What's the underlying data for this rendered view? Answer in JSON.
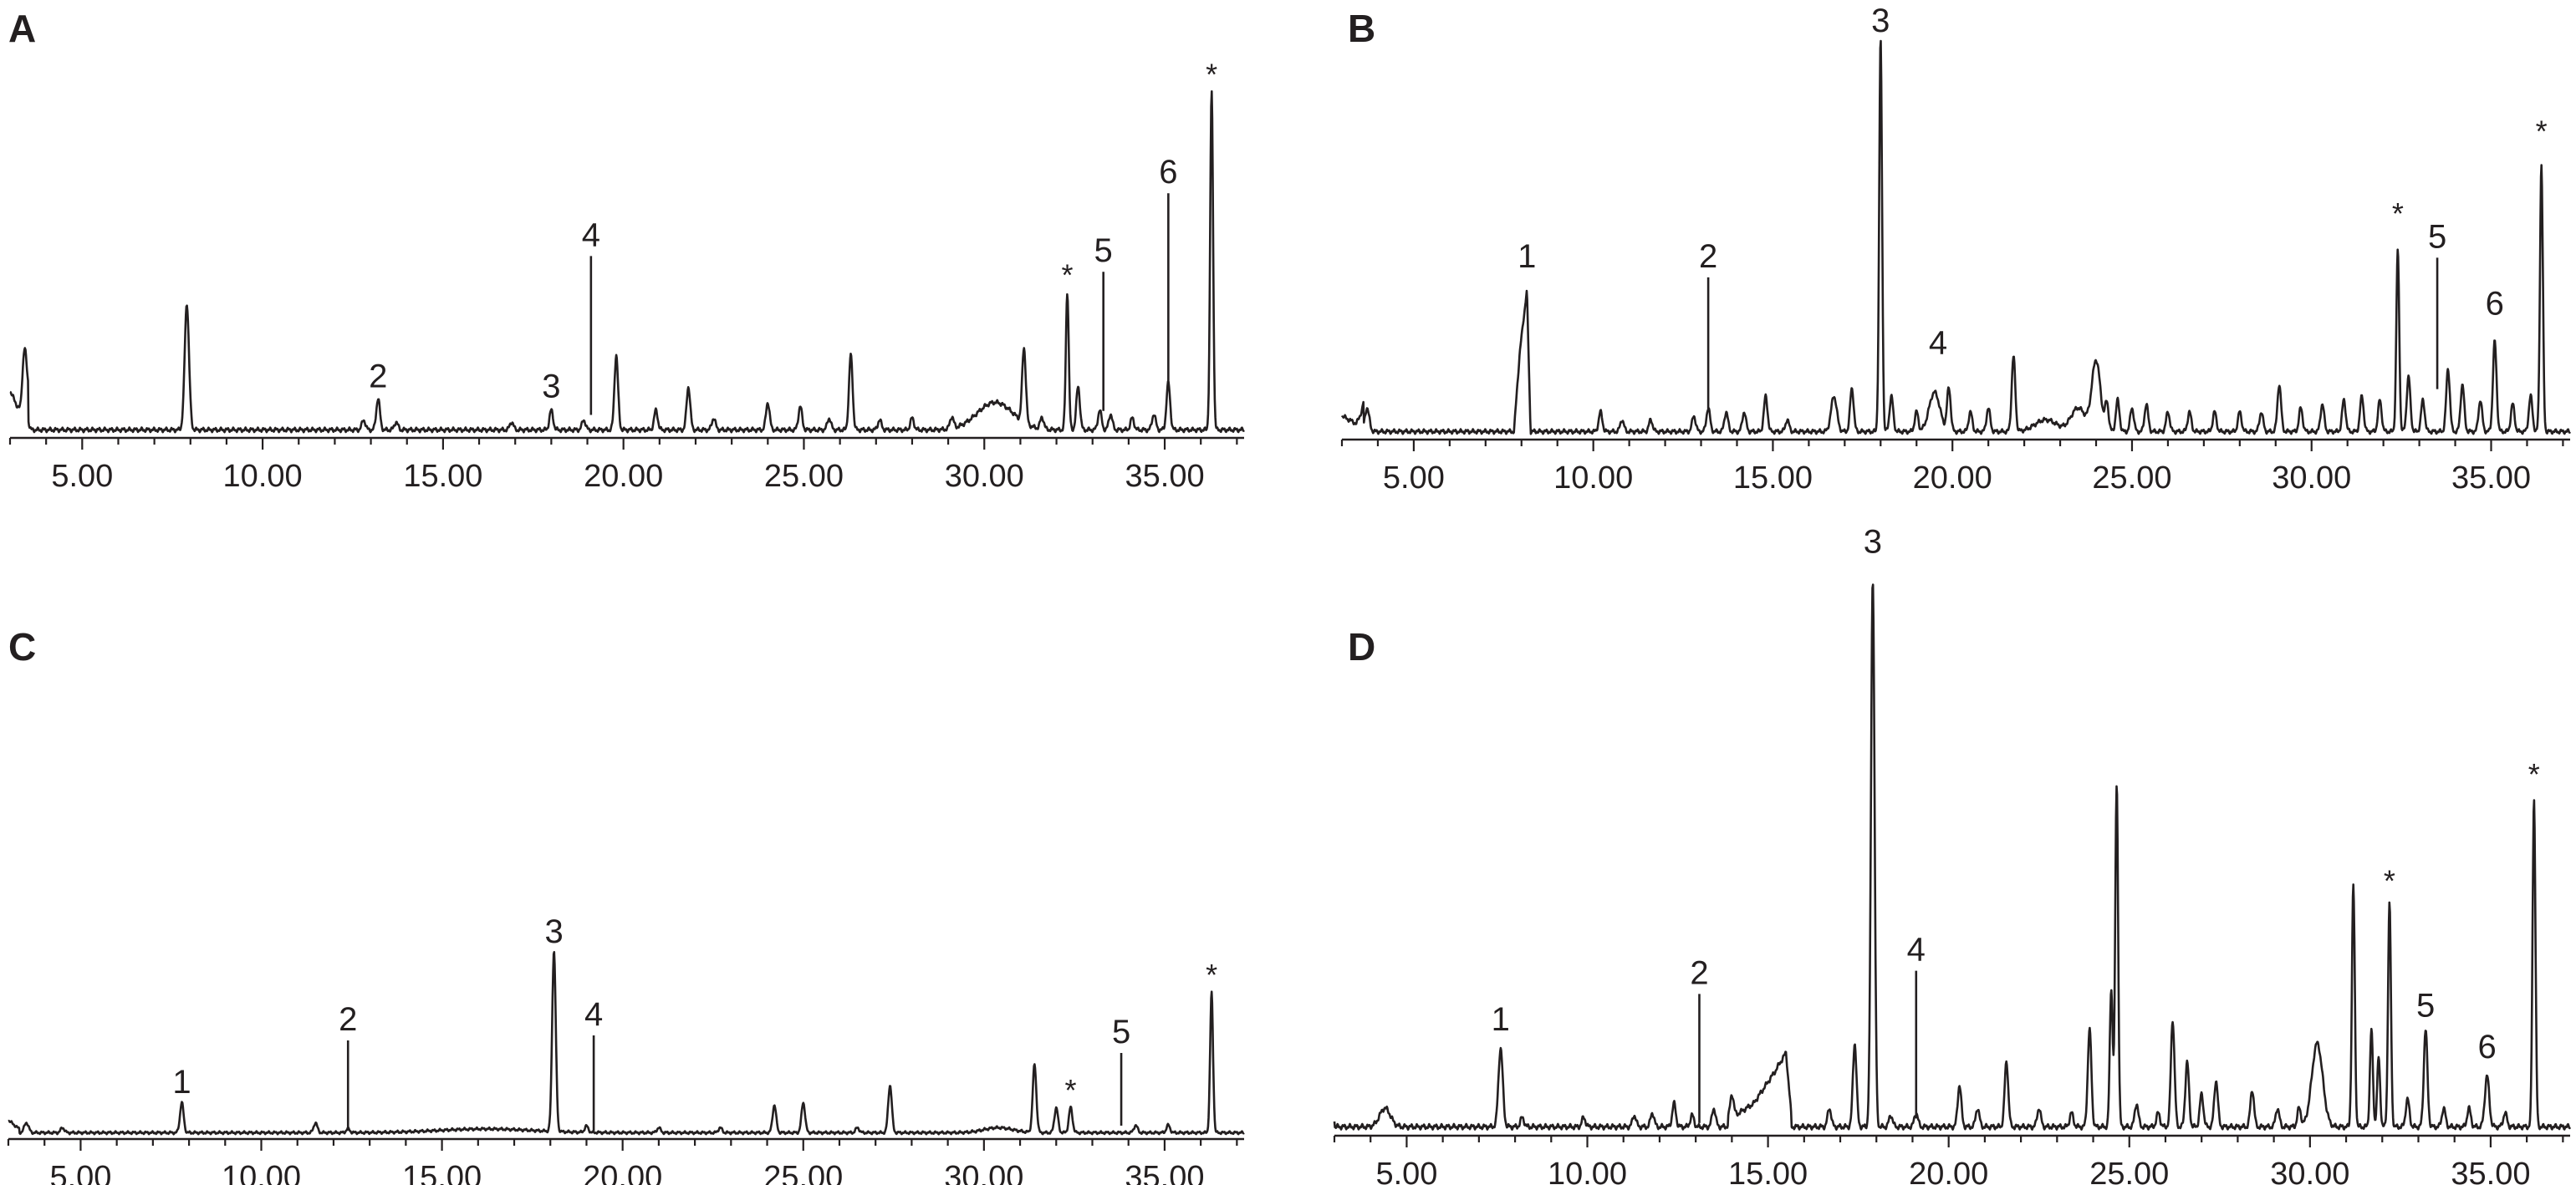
{
  "colors": {
    "line": "#231f20",
    "background": "#ffffff"
  },
  "chart_data": [
    {
      "type": "line",
      "panel": "A",
      "x_ticks": [
        "5.00",
        "10.00",
        "15.00",
        "20.00",
        "25.00",
        "30.00",
        "35.00"
      ],
      "xlim": [
        3.0,
        37.2
      ],
      "ylim": [
        0,
        100
      ],
      "baseline": 1.2,
      "start_bump": [
        [
          3.0,
          10
        ],
        [
          3.3,
          4
        ],
        [
          3.5,
          9
        ]
      ],
      "peaks": [
        [
          3.4,
          14,
          0.06
        ],
        [
          7.9,
          32,
          0.06
        ],
        [
          12.8,
          2.5,
          0.05
        ],
        [
          13.2,
          8,
          0.05
        ],
        [
          13.7,
          2,
          0.05
        ],
        [
          16.9,
          2,
          0.05
        ],
        [
          18.0,
          5,
          0.05
        ],
        [
          18.9,
          2.5,
          0.05
        ],
        [
          19.8,
          19,
          0.05
        ],
        [
          20.9,
          5,
          0.05
        ],
        [
          21.8,
          11,
          0.05
        ],
        [
          22.5,
          3,
          0.05
        ],
        [
          24.0,
          7,
          0.05
        ],
        [
          24.9,
          6,
          0.05
        ],
        [
          25.7,
          3,
          0.05
        ],
        [
          26.3,
          19,
          0.05
        ],
        [
          27.1,
          2.5,
          0.05
        ],
        [
          28.0,
          3,
          0.05
        ],
        [
          29.1,
          3,
          0.05
        ],
        [
          30.3,
          7,
          0.5
        ],
        [
          31.1,
          19,
          0.05
        ],
        [
          31.6,
          3,
          0.05
        ],
        [
          32.3,
          35,
          0.04
        ],
        [
          32.6,
          11,
          0.05
        ],
        [
          33.2,
          5,
          0.05
        ],
        [
          33.5,
          4,
          0.05
        ],
        [
          34.1,
          3,
          0.05
        ],
        [
          34.7,
          4,
          0.05
        ],
        [
          35.1,
          12,
          0.05
        ],
        [
          36.3,
          86,
          0.04
        ]
      ],
      "labels": [
        {
          "text": "2",
          "x": 13.2,
          "label_y": 12,
          "line_bottom": null
        },
        {
          "text": "3",
          "x": 18.0,
          "label_y": 9.5,
          "line_bottom": null
        },
        {
          "text": "4",
          "x": 19.1,
          "label_y": 48,
          "line_bottom": 5
        },
        {
          "text": "*",
          "x": 32.3,
          "label_y": 38,
          "line_bottom": null
        },
        {
          "text": "5",
          "x": 33.3,
          "label_y": 44,
          "line_bottom": 6
        },
        {
          "text": "6",
          "x": 35.1,
          "label_y": 64,
          "line_bottom": 13
        },
        {
          "text": "*",
          "x": 36.3,
          "label_y": 89,
          "line_bottom": null
        }
      ]
    },
    {
      "type": "line",
      "panel": "B",
      "x_ticks": [
        "5.00",
        "10.00",
        "15.00",
        "20.00",
        "25.00",
        "30.00",
        "35.00"
      ],
      "xlim": [
        3.0,
        37.2
      ],
      "ylim": [
        0,
        100
      ],
      "baseline": 1.2,
      "start_bump": [
        [
          3.0,
          4
        ],
        [
          3.4,
          2
        ],
        [
          3.6,
          6
        ]
      ],
      "plateau": [
        [
          7.8,
          1.2
        ],
        [
          7.95,
          20
        ],
        [
          8.15,
          36
        ],
        [
          8.25,
          1.5
        ]
      ],
      "peaks": [
        [
          3.7,
          6,
          0.06
        ],
        [
          10.2,
          5,
          0.05
        ],
        [
          10.8,
          3,
          0.05
        ],
        [
          11.6,
          3,
          0.05
        ],
        [
          12.8,
          4,
          0.05
        ],
        [
          13.2,
          6,
          0.05
        ],
        [
          13.7,
          5,
          0.05
        ],
        [
          14.2,
          5,
          0.05
        ],
        [
          14.8,
          9,
          0.05
        ],
        [
          15.4,
          3,
          0.05
        ],
        [
          16.7,
          9,
          0.08
        ],
        [
          17.2,
          11,
          0.05
        ],
        [
          18.0,
          100,
          0.04
        ],
        [
          18.3,
          9,
          0.05
        ],
        [
          19.0,
          5,
          0.05
        ],
        [
          19.5,
          10,
          0.15
        ],
        [
          19.9,
          11,
          0.05
        ],
        [
          20.5,
          5,
          0.05
        ],
        [
          21.0,
          6,
          0.05
        ],
        [
          21.7,
          19,
          0.05
        ],
        [
          22.6,
          3,
          0.3
        ],
        [
          23.5,
          6,
          0.2
        ],
        [
          24.0,
          18,
          0.12
        ],
        [
          24.3,
          7,
          0.05
        ],
        [
          24.6,
          8,
          0.05
        ],
        [
          25.0,
          6,
          0.05
        ],
        [
          25.4,
          7,
          0.05
        ],
        [
          26.0,
          5,
          0.05
        ],
        [
          26.6,
          5,
          0.05
        ],
        [
          27.3,
          5,
          0.05
        ],
        [
          28.0,
          5,
          0.05
        ],
        [
          28.6,
          5,
          0.05
        ],
        [
          29.1,
          12,
          0.05
        ],
        [
          29.7,
          6,
          0.05
        ],
        [
          30.3,
          7,
          0.05
        ],
        [
          30.9,
          8,
          0.05
        ],
        [
          31.4,
          9,
          0.05
        ],
        [
          31.9,
          8,
          0.05
        ],
        [
          32.4,
          46,
          0.04
        ],
        [
          32.7,
          14,
          0.05
        ],
        [
          33.1,
          8,
          0.05
        ],
        [
          33.8,
          16,
          0.05
        ],
        [
          34.2,
          12,
          0.05
        ],
        [
          34.7,
          8,
          0.05
        ],
        [
          35.1,
          23,
          0.05
        ],
        [
          35.6,
          7,
          0.05
        ],
        [
          36.1,
          9,
          0.05
        ],
        [
          36.4,
          68,
          0.04
        ]
      ],
      "labels": [
        {
          "text": "1",
          "x": 8.15,
          "label_y": 43,
          "line_bottom": null
        },
        {
          "text": "2",
          "x": 13.2,
          "label_y": 43,
          "line_bottom": 7
        },
        {
          "text": "3",
          "x": 18.0,
          "label_y": 103,
          "line_bottom": null
        },
        {
          "text": "4",
          "x": 19.6,
          "label_y": 21,
          "line_bottom": null
        },
        {
          "text": "*",
          "x": 32.4,
          "label_y": 54,
          "line_bottom": null
        },
        {
          "text": "5",
          "x": 33.5,
          "label_y": 48,
          "line_bottom": 12
        },
        {
          "text": "6",
          "x": 35.1,
          "label_y": 31,
          "line_bottom": null
        },
        {
          "text": "*",
          "x": 36.4,
          "label_y": 75,
          "line_bottom": null
        }
      ]
    },
    {
      "type": "line",
      "panel": "C",
      "x_ticks": [
        "5.00",
        "10.00",
        "15.00",
        "20.00",
        "25.00",
        "30.00",
        "35.00"
      ],
      "xlim": [
        3.0,
        37.2
      ],
      "ylim": [
        0,
        100
      ],
      "baseline": 1.2,
      "start_bump": [
        [
          3.0,
          5
        ],
        [
          3.3,
          1.5
        ]
      ],
      "peaks": [
        [
          3.5,
          4,
          0.06
        ],
        [
          4.5,
          2,
          0.05
        ],
        [
          7.8,
          12,
          0.05
        ],
        [
          11.5,
          4,
          0.05
        ],
        [
          12.4,
          1.5,
          0.05
        ],
        [
          16.2,
          1.5,
          1.3
        ],
        [
          18.1,
          72,
          0.05
        ],
        [
          19.0,
          2.5,
          0.05
        ],
        [
          21.0,
          2,
          0.05
        ],
        [
          22.7,
          2,
          0.05
        ],
        [
          24.2,
          11,
          0.05
        ],
        [
          25.0,
          12,
          0.05
        ],
        [
          26.5,
          2,
          0.05
        ],
        [
          27.4,
          19,
          0.05
        ],
        [
          30.4,
          2,
          0.4
        ],
        [
          31.4,
          27,
          0.05
        ],
        [
          32.0,
          10,
          0.05
        ],
        [
          32.4,
          10,
          0.05
        ],
        [
          34.2,
          3,
          0.05
        ],
        [
          35.1,
          3,
          0.05
        ],
        [
          36.3,
          56,
          0.04
        ]
      ],
      "labels": [
        {
          "text": "1",
          "x": 7.8,
          "label_y": 17,
          "line_bottom": null
        },
        {
          "text": "2",
          "x": 12.4,
          "label_y": 42,
          "line_bottom": 2
        },
        {
          "text": "3",
          "x": 18.1,
          "label_y": 77,
          "line_bottom": null
        },
        {
          "text": "4",
          "x": 19.2,
          "label_y": 44,
          "line_bottom": 2
        },
        {
          "text": "*",
          "x": 32.4,
          "label_y": 14,
          "line_bottom": null
        },
        {
          "text": "5",
          "x": 33.8,
          "label_y": 37,
          "line_bottom": 4
        },
        {
          "text": "*",
          "x": 36.3,
          "label_y": 60,
          "line_bottom": null
        }
      ]
    },
    {
      "type": "line",
      "panel": "D",
      "x_ticks": [
        "5.00",
        "10.00",
        "15.00",
        "20.00",
        "25.00",
        "30.00",
        "35.00"
      ],
      "xlim": [
        3.0,
        37.2
      ],
      "ylim": [
        0,
        100
      ],
      "baseline": 1.2,
      "start_bump": [
        [
          3.0,
          1.5
        ]
      ],
      "ramp": [
        [
          13.9,
          1.5
        ],
        [
          14.6,
          5
        ],
        [
          15.2,
          12
        ],
        [
          15.5,
          16
        ],
        [
          15.65,
          2
        ]
      ],
      "peaks": [
        [
          4.4,
          4,
          0.15
        ],
        [
          7.6,
          17,
          0.06
        ],
        [
          8.2,
          2,
          0.05
        ],
        [
          9.9,
          2,
          0.05
        ],
        [
          11.3,
          2.5,
          0.05
        ],
        [
          11.8,
          3,
          0.05
        ],
        [
          12.4,
          5,
          0.05
        ],
        [
          12.9,
          2.5,
          0.05
        ],
        [
          13.5,
          4,
          0.05
        ],
        [
          14.0,
          5,
          0.05
        ],
        [
          16.7,
          4,
          0.05
        ],
        [
          17.4,
          18,
          0.05
        ],
        [
          17.9,
          118,
          0.05
        ],
        [
          18.4,
          2.5,
          0.05
        ],
        [
          19.1,
          3,
          0.05
        ],
        [
          20.3,
          9,
          0.05
        ],
        [
          20.8,
          4,
          0.05
        ],
        [
          21.6,
          14,
          0.05
        ],
        [
          22.5,
          4,
          0.05
        ],
        [
          23.4,
          3,
          0.05
        ],
        [
          23.9,
          21,
          0.05
        ],
        [
          24.5,
          30,
          0.04
        ],
        [
          24.65,
          74,
          0.04
        ],
        [
          25.2,
          5,
          0.05
        ],
        [
          25.8,
          3,
          0.05
        ],
        [
          26.2,
          23,
          0.05
        ],
        [
          26.6,
          14,
          0.05
        ],
        [
          27.0,
          7,
          0.05
        ],
        [
          27.4,
          10,
          0.05
        ],
        [
          28.4,
          8,
          0.05
        ],
        [
          29.1,
          4,
          0.05
        ],
        [
          29.7,
          4,
          0.05
        ],
        [
          30.2,
          18,
          0.15
        ],
        [
          31.2,
          52,
          0.04
        ],
        [
          31.7,
          21,
          0.04
        ],
        [
          31.9,
          15,
          0.04
        ],
        [
          32.2,
          48,
          0.04
        ],
        [
          32.7,
          6,
          0.05
        ],
        [
          33.2,
          21,
          0.05
        ],
        [
          33.7,
          4,
          0.05
        ],
        [
          34.4,
          4,
          0.05
        ],
        [
          34.9,
          11,
          0.06
        ],
        [
          35.4,
          3,
          0.05
        ],
        [
          36.2,
          71,
          0.04
        ]
      ],
      "labels": [
        {
          "text": "1",
          "x": 7.6,
          "label_y": 22,
          "line_bottom": null
        },
        {
          "text": "2",
          "x": 13.1,
          "label_y": 32,
          "line_bottom": 2
        },
        {
          "text": "3",
          "x": 17.9,
          "label_y": 125,
          "line_bottom": null
        },
        {
          "text": "4",
          "x": 19.1,
          "label_y": 37,
          "line_bottom": 3
        },
        {
          "text": "*",
          "x": 32.2,
          "label_y": 52,
          "line_bottom": null
        },
        {
          "text": "5",
          "x": 33.2,
          "label_y": 25,
          "line_bottom": null
        },
        {
          "text": "6",
          "x": 34.9,
          "label_y": 16,
          "line_bottom": null
        },
        {
          "text": "*",
          "x": 36.2,
          "label_y": 75,
          "line_bottom": null
        }
      ]
    }
  ]
}
